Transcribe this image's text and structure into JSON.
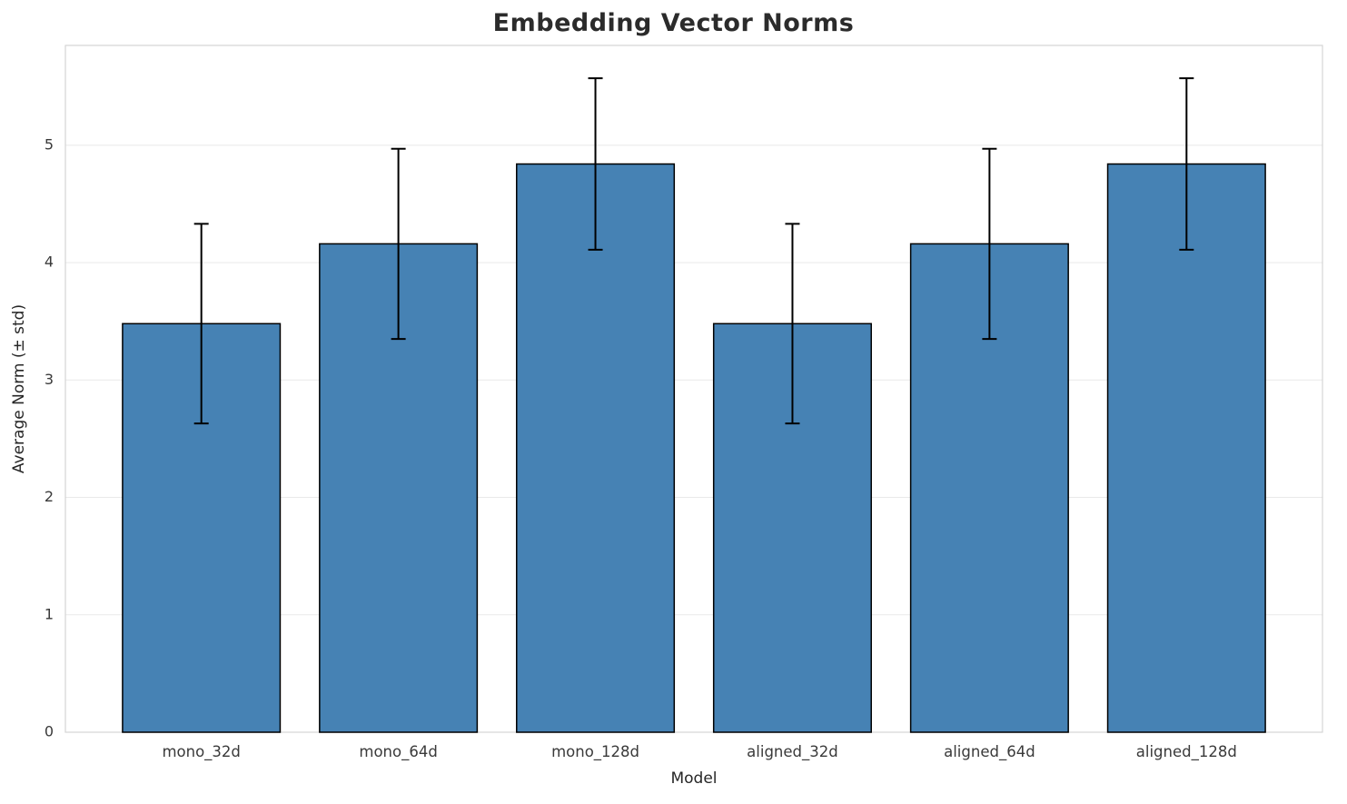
{
  "page": {
    "background": "#ffffff"
  },
  "chart_data": {
    "type": "bar",
    "title": "Embedding Vector Norms",
    "xlabel": "Model",
    "ylabel": "Average Norm (± std)",
    "categories": [
      "mono_32d",
      "mono_64d",
      "mono_128d",
      "aligned_32d",
      "aligned_64d",
      "aligned_128d"
    ],
    "values": [
      3.48,
      4.16,
      4.84,
      3.48,
      4.16,
      4.84
    ],
    "errors": [
      0.85,
      0.81,
      0.73,
      0.85,
      0.81,
      0.73
    ],
    "ylim": [
      0,
      5.85
    ],
    "yticks": [
      0,
      1,
      2,
      3,
      4,
      5
    ],
    "bar_color": "#4682b4",
    "bar_edge_color": "#000000",
    "error_color": "#000000",
    "grid": true,
    "grid_color": "#e9e9e9",
    "border_color": "#d4d4d4",
    "tick_label_color": "#3a3a3a",
    "legend": "none"
  }
}
